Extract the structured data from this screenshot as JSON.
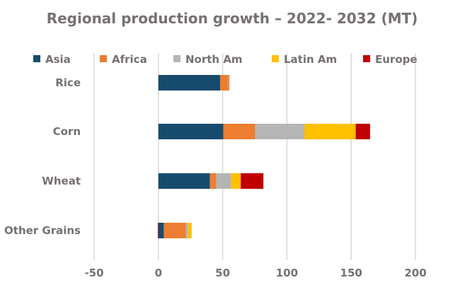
{
  "chart_data": {
    "type": "bar",
    "orientation": "horizontal",
    "stacked": true,
    "title": "Regional production growth – 2022- 2032 (MT)",
    "categories": [
      "Rice",
      "Corn",
      "Wheat",
      "Other Grains"
    ],
    "series": [
      {
        "name": "Asia",
        "color": "#174B6E",
        "values": [
          48,
          50.6,
          40.1,
          4.2
        ]
      },
      {
        "name": "Africa",
        "color": "#ED7D31",
        "values": [
          6.2,
          24.8,
          5,
          17.1
        ]
      },
      {
        "name": "North Am",
        "color": "#B5B5B5",
        "values": [
          0.4,
          38.4,
          11.4,
          1.7
        ]
      },
      {
        "name": "Latin Am",
        "color": "#FFC000",
        "values": [
          0.3,
          39.7,
          7.6,
          2.9
        ]
      },
      {
        "name": "Europe",
        "color": "#C00000",
        "values": [
          0.2,
          11.2,
          17.6,
          -0.5
        ]
      }
    ],
    "xlim": [
      -50,
      200
    ],
    "xticks": [
      "-50",
      "0",
      "50",
      "100",
      "150",
      "200"
    ],
    "grid": true,
    "legend": "top"
  }
}
